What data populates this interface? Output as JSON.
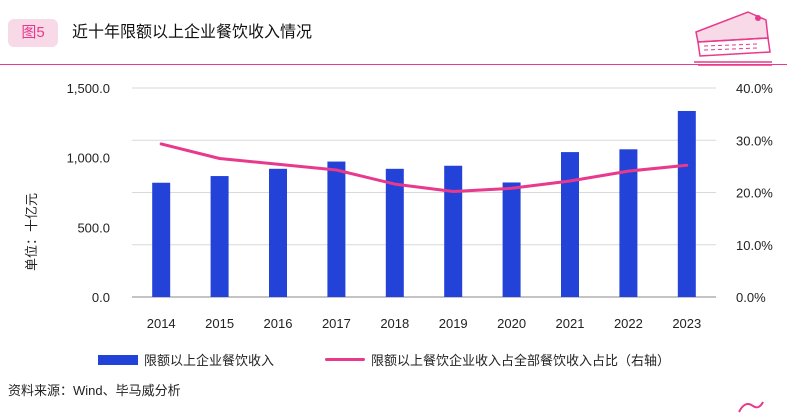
{
  "header": {
    "figure_label": "图5",
    "title": "近十年限额以上企业餐饮收入情况"
  },
  "colors": {
    "accent": "#e8398c",
    "bar": "#2342d8",
    "badge_bg": "#f7d9e8"
  },
  "chart_data": {
    "type": "bar",
    "title": "近十年限额以上企业餐饮收入情况",
    "categories": [
      "2014",
      "2015",
      "2016",
      "2017",
      "2018",
      "2019",
      "2020",
      "2021",
      "2022",
      "2023"
    ],
    "ylabel": "单位：十亿元",
    "ylim": [
      0,
      1500
    ],
    "y_ticks": [
      "0.0",
      "500.0",
      "1,000.0",
      "1,500.0"
    ],
    "y2lim": [
      0,
      40
    ],
    "y2_ticks": [
      "0.0%",
      "10.0%",
      "20.0%",
      "30.0%",
      "40.0%"
    ],
    "series": [
      {
        "name": "限额以上企业餐饮收入",
        "type": "bar",
        "axis": "left",
        "values": [
          820,
          868,
          920,
          972,
          920,
          942,
          822,
          1040,
          1060,
          1335
        ]
      },
      {
        "name": "限额以上餐饮企业收入占全部餐饮收入占比（右轴）",
        "type": "line",
        "axis": "right",
        "values": [
          29.3,
          26.5,
          25.4,
          24.3,
          21.6,
          20.2,
          20.8,
          22.2,
          24.1,
          25.2
        ]
      }
    ],
    "legend_position": "bottom"
  },
  "source": "资料来源：Wind、毕马威分析"
}
